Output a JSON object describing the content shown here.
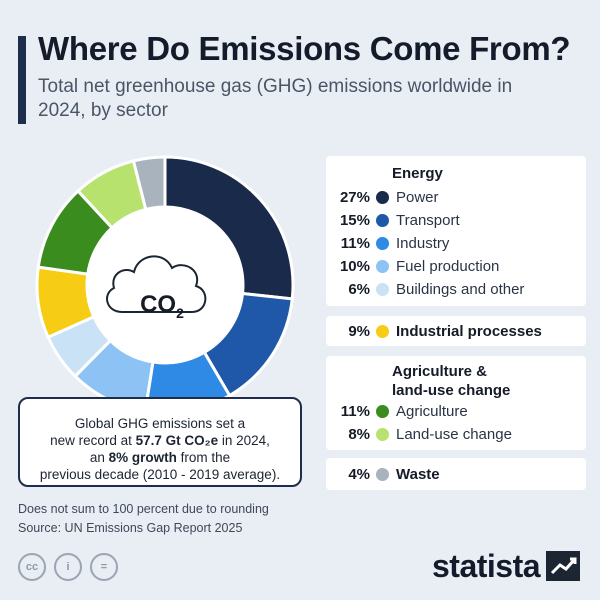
{
  "title": "Where Do Emissions Come From?",
  "subtitle": "Total net greenhouse gas (GHG) emissions worldwide in 2024, by sector",
  "center_label": "CO",
  "center_label_sub": "2",
  "callout": {
    "line1": "Global GHG emissions set a",
    "line2a": "new record at ",
    "line2b": "57.7 Gt CO₂e",
    "line2c": " in 2024,",
    "line3a": "an ",
    "line3b": "8% growth",
    "line3c": " from the",
    "line4": "previous decade (2010 - 2019 average)."
  },
  "groups": {
    "energy": "Energy",
    "agriculture": "Agriculture &",
    "agriculture2": "land-use change"
  },
  "legend": [
    {
      "pct": "27%",
      "label": "Power",
      "color": "#1a2a4a"
    },
    {
      "pct": "15%",
      "label": "Transport",
      "color": "#1f58a8"
    },
    {
      "pct": "11%",
      "label": "Industry",
      "color": "#2f8ae6"
    },
    {
      "pct": "10%",
      "label": "Fuel production",
      "color": "#8cc2f4"
    },
    {
      "pct": "6%",
      "label": "Buildings and other",
      "color": "#c9e2f6"
    },
    {
      "pct": "9%",
      "label": "Industrial processes",
      "color": "#f6cc15"
    },
    {
      "pct": "11%",
      "label": "Agriculture",
      "color": "#3a8c1f"
    },
    {
      "pct": "8%",
      "label": "Land-use change",
      "color": "#b8e26e"
    },
    {
      "pct": "4%",
      "label": "Waste",
      "color": "#a8b3bd"
    }
  ],
  "footnote1": "Does not sum to 100 percent due to rounding",
  "footnote2": "Source: UN Emissions Gap Report 2025",
  "cc_icons": [
    "cc-icon",
    "by-icon",
    "nd-icon"
  ],
  "cc_texts": [
    "cc",
    "i",
    "="
  ],
  "brand": "statista",
  "chart_data": {
    "type": "pie",
    "title": "Where Do Emissions Come From?",
    "subtitle": "Total net greenhouse gas (GHG) emissions worldwide in 2024, by sector",
    "categories": [
      "Power",
      "Transport",
      "Industry",
      "Fuel production",
      "Buildings and other",
      "Industrial processes",
      "Agriculture",
      "Land-use change",
      "Waste"
    ],
    "values": [
      27,
      15,
      11,
      10,
      6,
      9,
      11,
      8,
      4
    ],
    "colors": [
      "#1a2a4a",
      "#1f58a8",
      "#2f8ae6",
      "#8cc2f4",
      "#c9e2f6",
      "#f6cc15",
      "#3a8c1f",
      "#b8e26e",
      "#a8b3bd"
    ],
    "donut": true,
    "legend": "right"
  }
}
